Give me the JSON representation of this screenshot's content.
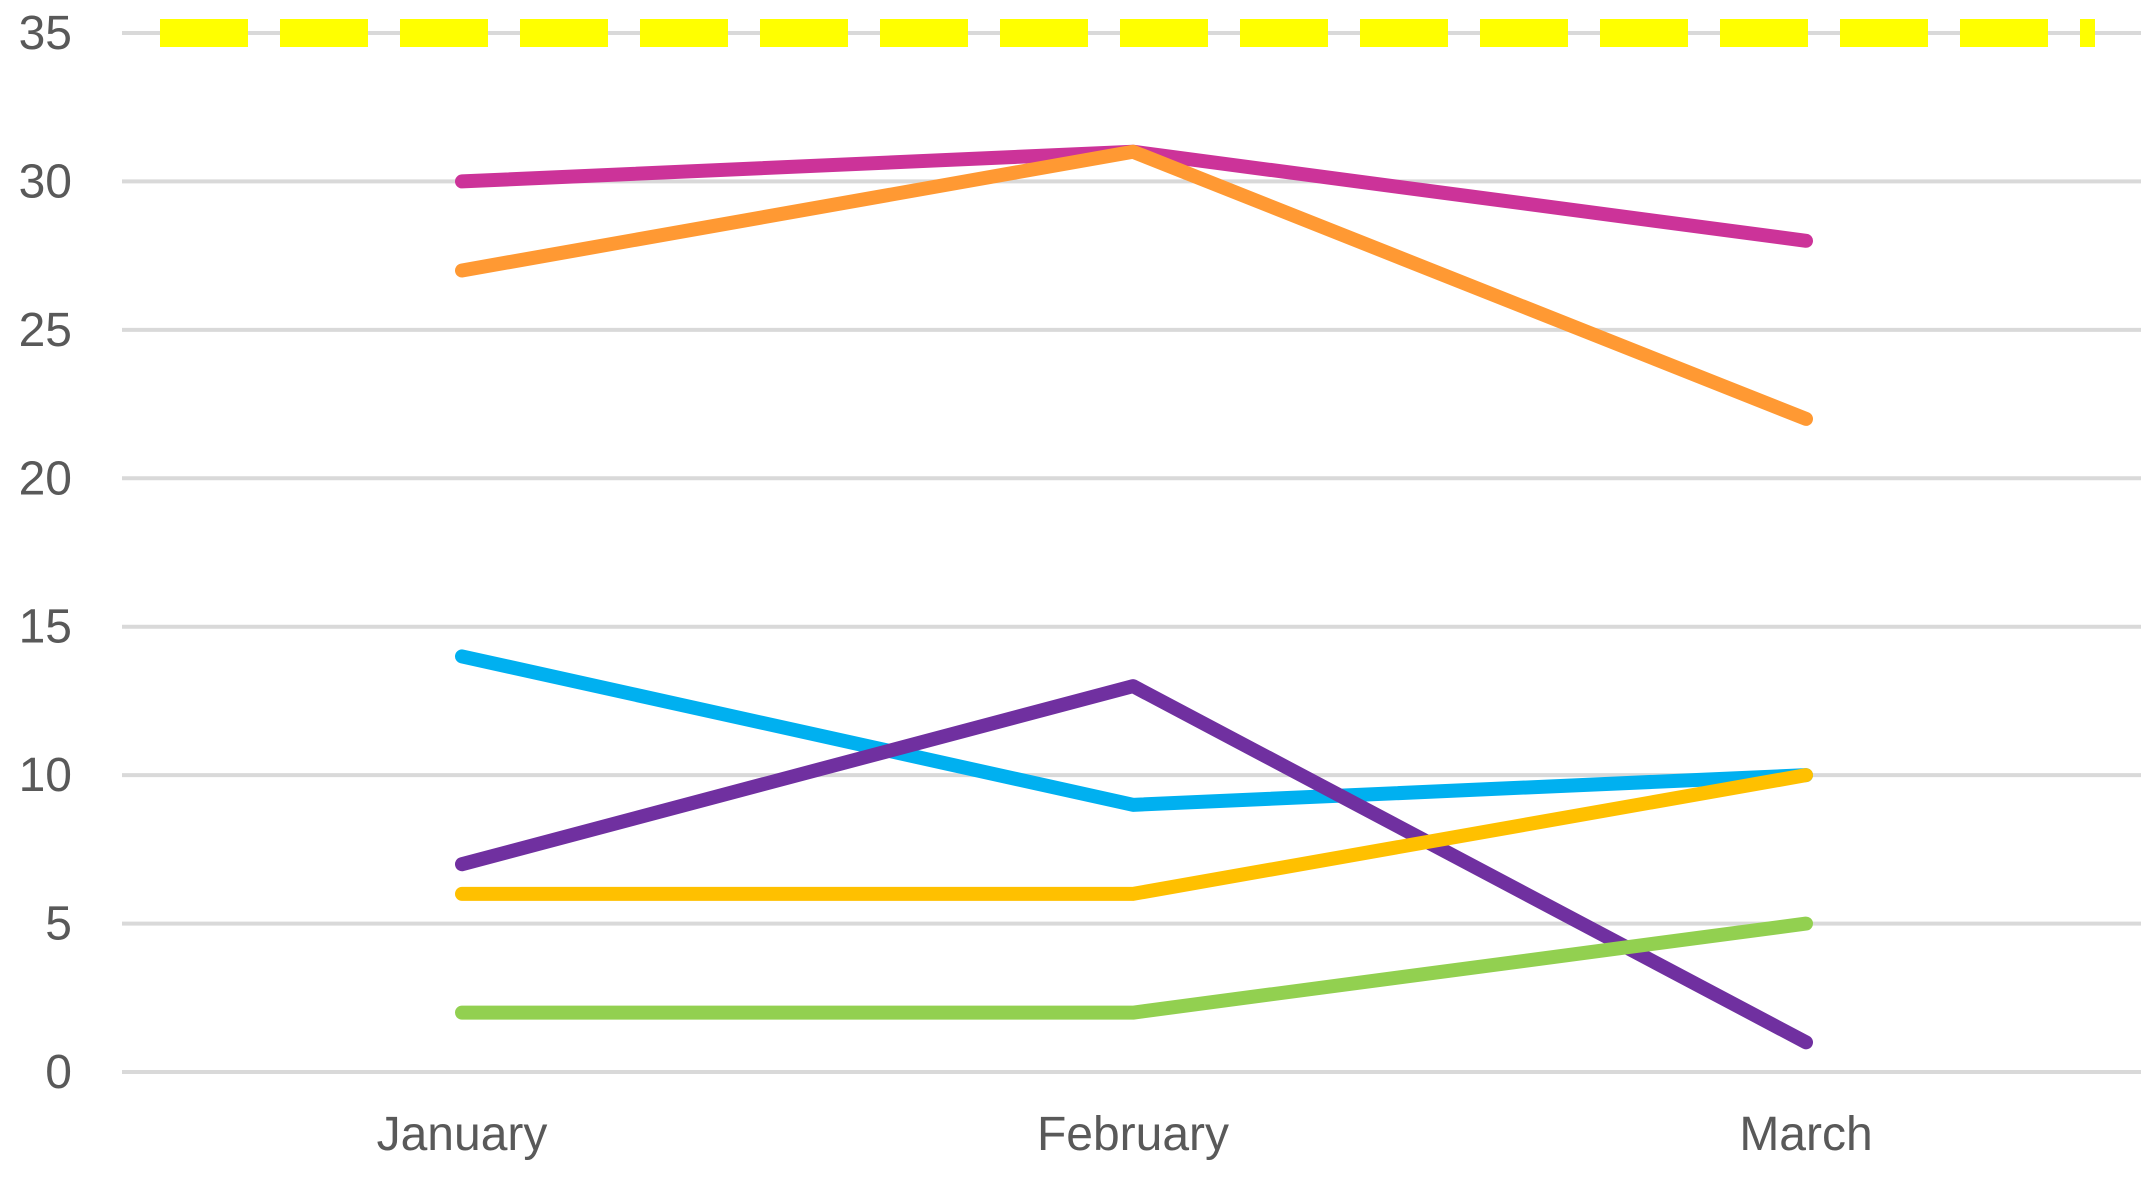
{
  "chart_data": {
    "type": "line",
    "title": "",
    "xlabel": "",
    "ylabel": "",
    "categories": [
      "January",
      "February",
      "March"
    ],
    "ylim": [
      0,
      35
    ],
    "yticks": [
      0,
      5,
      10,
      15,
      20,
      25,
      30,
      35
    ],
    "grid": true,
    "legend": "none",
    "series": [
      {
        "color": "#cc3399",
        "values": [
          30,
          31,
          28
        ]
      },
      {
        "color": "#ff9933",
        "values": [
          27,
          31,
          22
        ]
      },
      {
        "color": "#00b0f0",
        "values": [
          14,
          9,
          10
        ]
      },
      {
        "color": "#7030a0",
        "values": [
          7,
          13,
          1
        ]
      },
      {
        "color": "#ffc000",
        "values": [
          6,
          6,
          10
        ]
      },
      {
        "color": "#92d050",
        "values": [
          2,
          2,
          5
        ]
      }
    ],
    "reference_line": {
      "value": 35,
      "color": "#ffff00",
      "style": "dashed"
    }
  }
}
